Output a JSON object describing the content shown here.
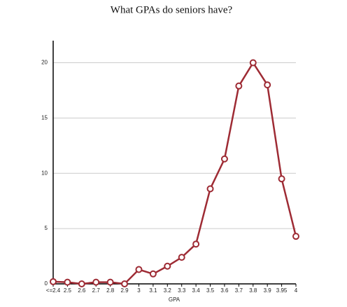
{
  "chart_data": {
    "type": "line",
    "title": "What GPAs do seniors have?",
    "x_label": "GPA",
    "categories": [
      "<=2.4",
      "2.5",
      "2.6",
      "2.7",
      "2.8",
      "2.9",
      "3",
      "3.1",
      "3.2",
      "3.3",
      "3.4",
      "3.5",
      "3.6",
      "3.7",
      "3.8",
      "3.9",
      "3.95",
      "4"
    ],
    "values": [
      0.2,
      0.15,
      0,
      0.15,
      0.15,
      0,
      1.3,
      0.9,
      1.6,
      2.4,
      3.6,
      8.6,
      11.3,
      17.9,
      20,
      18,
      9.5,
      4.3
    ],
    "color": "#9e2b34",
    "ylim": [
      0,
      22
    ],
    "yticks": [
      0,
      5,
      10,
      15,
      20
    ],
    "grid": true
  }
}
